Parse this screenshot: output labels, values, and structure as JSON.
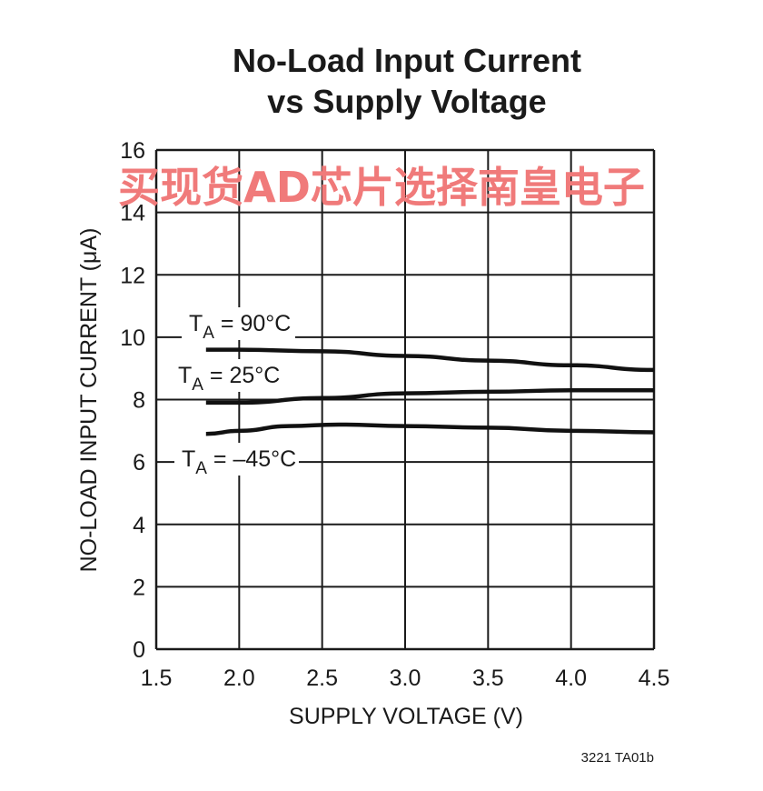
{
  "chart_data": {
    "type": "line",
    "title": [
      "No-Load Input Current",
      "vs Supply Voltage"
    ],
    "xlabel": "SUPPLY VOLTAGE (V)",
    "ylabel": "NO-LOAD INPUT CURRENT (μA)",
    "xlim": [
      1.5,
      4.5
    ],
    "ylim": [
      0,
      16
    ],
    "xticks": [
      "1.5",
      "2.0",
      "2.5",
      "3.0",
      "3.5",
      "4.0",
      "4.5"
    ],
    "yticks": [
      "0",
      "2",
      "4",
      "6",
      "8",
      "10",
      "12",
      "14",
      "16"
    ],
    "grid": true,
    "series": [
      {
        "name": "TA = 90°C",
        "sub": "A",
        "label_pre": "T",
        "label_post": " = 90°C",
        "x": [
          1.8,
          2.0,
          2.5,
          3.0,
          3.5,
          4.0,
          4.5
        ],
        "y": [
          9.6,
          9.6,
          9.55,
          9.4,
          9.25,
          9.1,
          8.95
        ]
      },
      {
        "name": "TA = 25°C",
        "sub": "A",
        "label_pre": "T",
        "label_post": " = 25°C",
        "x": [
          1.8,
          2.0,
          2.5,
          3.0,
          3.5,
          4.0,
          4.5
        ],
        "y": [
          7.9,
          7.9,
          8.05,
          8.2,
          8.25,
          8.3,
          8.3
        ]
      },
      {
        "name": "TA = –45°C",
        "sub": "A",
        "label_pre": "T",
        "label_post": " = –45°C",
        "x": [
          1.8,
          2.0,
          2.3,
          2.6,
          3.0,
          3.5,
          4.0,
          4.5
        ],
        "y": [
          6.9,
          7.0,
          7.15,
          7.2,
          7.15,
          7.1,
          7.0,
          6.95
        ]
      }
    ],
    "footnote": "3221 TA01b"
  },
  "watermark": "买现货AD芯片选择南皇电子"
}
